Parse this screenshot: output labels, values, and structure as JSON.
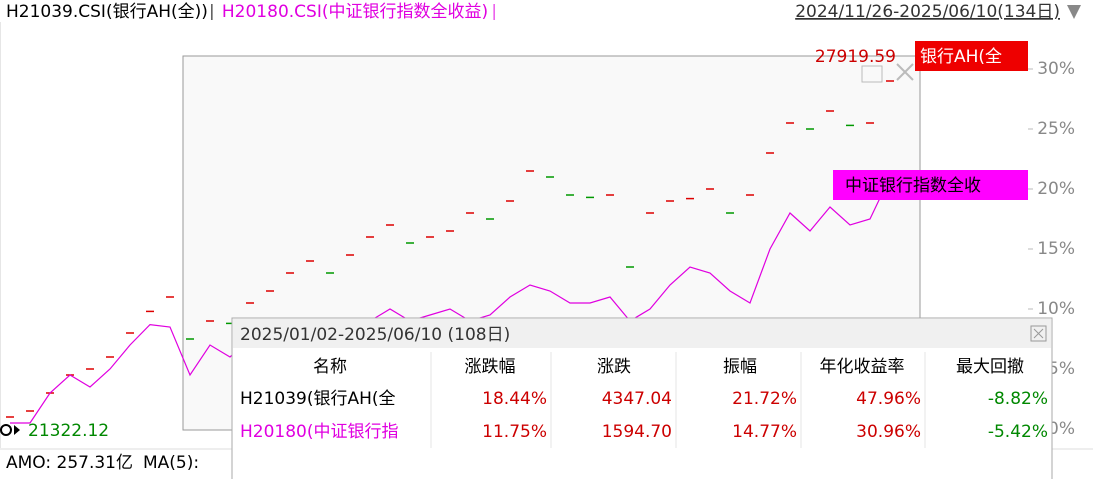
{
  "chart_data": {
    "type": "line",
    "date_range": "2024/11/26-2025/06/10(134日)",
    "ylim": [
      -1.75,
      34
    ],
    "yticks": [
      {
        "value": 0,
        "label": "0%"
      },
      {
        "value": 5,
        "label": "5%"
      },
      {
        "value": 10,
        "label": "10%"
      },
      {
        "value": 15,
        "label": "15%"
      },
      {
        "value": 20,
        "label": "20%"
      },
      {
        "value": 25,
        "label": "25%"
      },
      {
        "value": 30,
        "label": "30%"
      }
    ],
    "series": [
      {
        "name": "H21039.CSI(银行AH(全))",
        "short_name": "银行AH(全",
        "style": "dash",
        "color": "#cc0000",
        "up_color": "#dd0000",
        "down_color": "#009900",
        "values": [
          1,
          1.5,
          3,
          4.5,
          5,
          6,
          8,
          9.8,
          11,
          7.5,
          9,
          8.8,
          10.5,
          11.5,
          13,
          14,
          13,
          14.5,
          16,
          17,
          15.5,
          16,
          16.5,
          18,
          17.5,
          19,
          21.5,
          21,
          19.5,
          19.3,
          19.5,
          13.5,
          18,
          19,
          19.2,
          20,
          18,
          19.5,
          23,
          25.5,
          25,
          26.5,
          25.3,
          25.5,
          29
        ]
      },
      {
        "name": "H20180.CSI(中证银行指数全收益)",
        "short_name": "中证银行指数全收",
        "style": "line",
        "color": "#e000e0",
        "values": [
          0.5,
          0.5,
          3,
          4.5,
          3.5,
          5,
          7,
          8.7,
          8.5,
          4.5,
          7,
          6,
          7.5,
          6.5,
          8,
          7,
          9,
          8,
          9,
          10,
          9,
          9.5,
          10,
          9,
          9.5,
          11,
          12,
          11.5,
          10.5,
          10.5,
          11,
          9,
          10,
          12,
          13.5,
          13,
          11.5,
          10.5,
          15,
          18,
          16.5,
          18.5,
          17,
          17.5,
          21
        ]
      }
    ],
    "price_high": 27919.59,
    "price_low": 21322.12
  },
  "stats_panel": {
    "title": "2025/01/02-2025/06/10 (108日)",
    "headers": [
      "名称",
      "涨跌幅",
      "涨跌",
      "振幅",
      "年化收益率",
      "最大回撤"
    ],
    "up_color": "#cc0000",
    "down_color": "#008800",
    "row_colors": [
      "#000000",
      "#e000e0"
    ],
    "rows": [
      [
        "H21039(银行AH(全",
        "18.44%",
        "4347.04",
        "21.72%",
        "47.96%",
        "-8.82%"
      ],
      [
        "H20180(中证银行指",
        "11.75%",
        "1594.70",
        "14.77%",
        "30.96%",
        "-5.42%"
      ]
    ]
  },
  "footer": {
    "amount": "AMO: 257.31亿",
    "ma": "MA(5):"
  }
}
